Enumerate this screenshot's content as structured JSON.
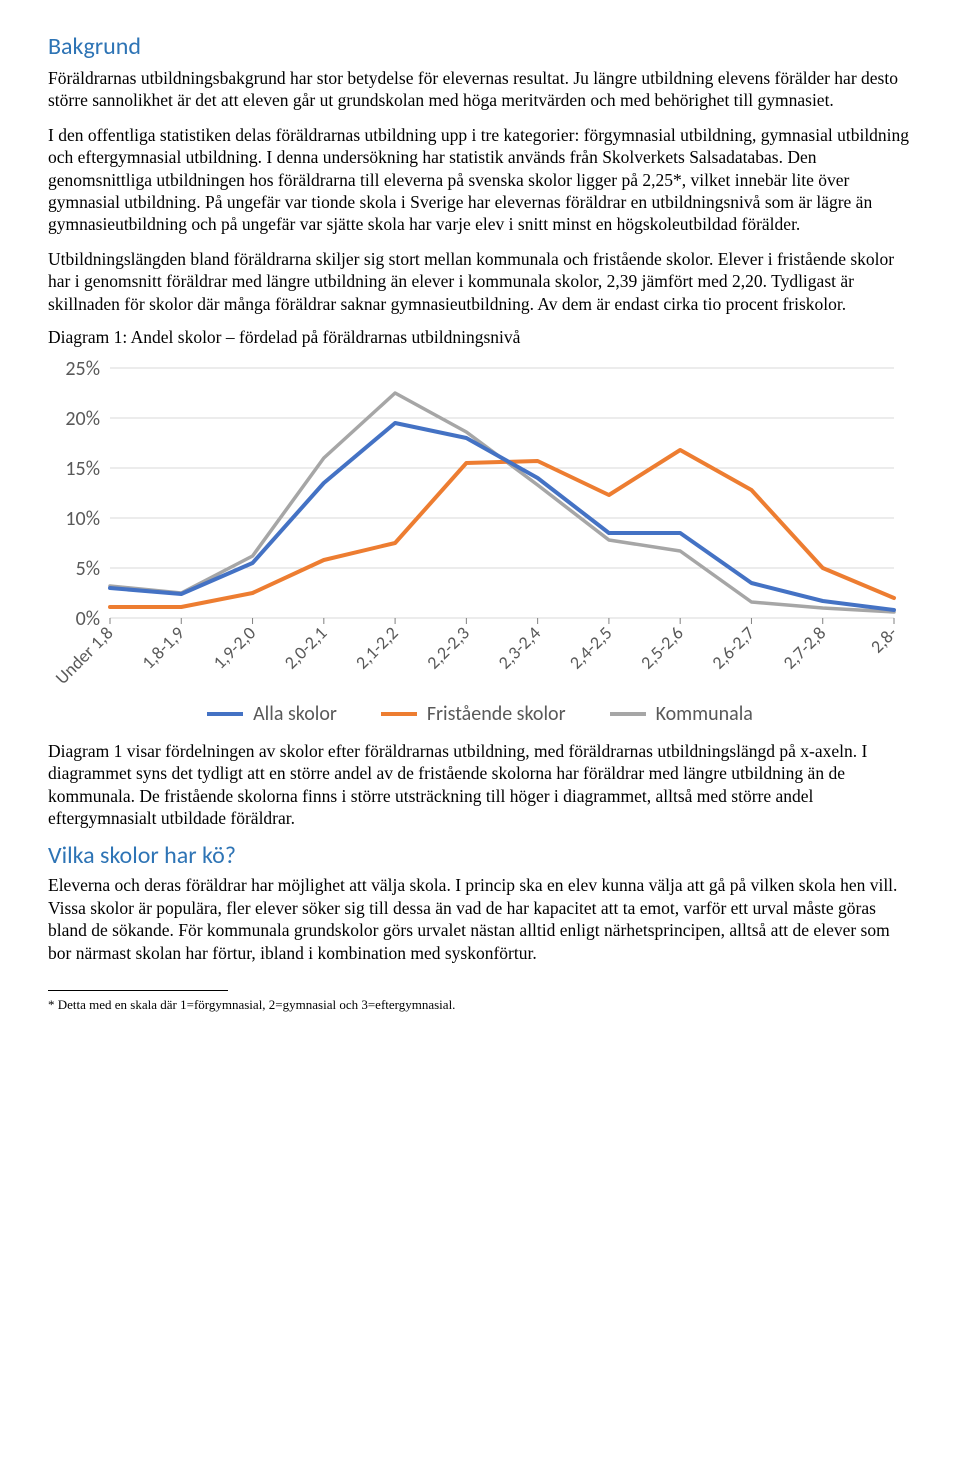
{
  "h1": "Bakgrund",
  "p1": "Föräldrarnas utbildningsbakgrund har stor betydelse för elevernas resultat. Ju längre utbildning elevens förälder har desto större sannolikhet är det att eleven går ut grundskolan med höga meritvärden och med behörighet till gymnasiet.",
  "p2": "I den offentliga statistiken delas föräldrarnas utbildning upp i tre kategorier: förgymnasial utbildning, gymnasial utbildning och eftergymnasial utbildning. I denna undersökning har statistik används från Skolverkets Salsadatabas. Den genomsnittliga utbildningen hos föräldrarna till eleverna på svenska skolor ligger på 2,25*, vilket innebär lite över gymnasial utbildning. På ungefär var tionde skola i Sverige har elevernas föräldrar en utbildningsnivå som är lägre än gymnasieutbildning och på ungefär var sjätte skola har varje elev i snitt minst en högskoleutbildad förälder.",
  "p3": "Utbildningslängden bland föräldrarna skiljer sig stort mellan kommunala och fristående skolor. Elever i fristående skolor har i genomsnitt föräldrar med längre utbildning än elever i kommunala skolor, 2,39 jämfört med 2,20. Tydligast är skillnaden för skolor där många föräldrar saknar gymnasieutbildning. Av dem är endast cirka tio procent friskolor.",
  "caption1": "Diagram 1: Andel skolor – fördelad på föräldrarnas utbildningsnivå",
  "p4": "Diagram 1 visar fördelningen av skolor efter föräldrarnas utbildning, med föräldrarnas utbildningslängd på x-axeln. I diagrammet syns det tydligt att en större andel av de fristående skolorna har föräldrar med längre utbildning än de kommunala. De fristående skolorna finns i större utsträckning till höger i diagrammet, alltså med större andel eftergymnasialt utbildade föräldrar.",
  "h2": "Vilka skolor har kö?",
  "p5": "Eleverna och deras föräldrar har möjlighet att välja skola. I princip ska en elev kunna välja att gå på vilken skola hen vill. Vissa skolor är populära, fler elever söker sig till dessa än vad de har kapacitet att ta emot, varför ett urval måste göras bland de sökande. För kommunala grundskolor görs urvalet nästan alltid enligt närhetsprincipen, alltså att de elever som bor närmast skolan har förtur, ibland i kombination med syskonförtur.",
  "footnote": "* Detta med en skala där 1=förgymnasial, 2=gymnasial och 3=eftergymnasial.",
  "chart": {
    "type": "line",
    "ylim": [
      0,
      25
    ],
    "ytick_step": 5,
    "yticks_labels": [
      "0%",
      "5%",
      "10%",
      "15%",
      "20%",
      "25%"
    ],
    "x_categories": [
      "Under 1,8",
      "1,8-1,9",
      "1,9-2,0",
      "2,0-2,1",
      "2,1-2,2",
      "2,2-2,3",
      "2,3-2,4",
      "2,4-2,5",
      "2,5-2,6",
      "2,6-2,7",
      "2,7-2,8",
      "2,8-"
    ],
    "series": [
      {
        "name": "Alla skolor",
        "color": "#4472c4",
        "width": 4,
        "values": [
          3.0,
          2.4,
          5.5,
          13.5,
          19.5,
          18.0,
          14.0,
          8.5,
          8.5,
          3.5,
          1.7,
          0.8
        ]
      },
      {
        "name": "Fristående skolor",
        "color": "#ed7d31",
        "width": 4,
        "values": [
          1.1,
          1.1,
          2.5,
          5.8,
          7.5,
          15.5,
          15.7,
          12.3,
          16.8,
          12.8,
          5.0,
          2.0
        ]
      },
      {
        "name": "Kommunala",
        "color": "#a6a6a6",
        "width": 3.5,
        "values": [
          3.2,
          2.5,
          6.2,
          16.0,
          22.5,
          18.6,
          13.3,
          7.8,
          6.7,
          1.6,
          1.0,
          0.6
        ]
      }
    ],
    "background_color": "#ffffff",
    "grid_color": "#d9d9d9",
    "tick_color": "#808080",
    "axis_label_color": "#595959",
    "axis_label_fontsize": 20,
    "xlabel_fontsize": 18,
    "xlabel_rotation": -45
  }
}
